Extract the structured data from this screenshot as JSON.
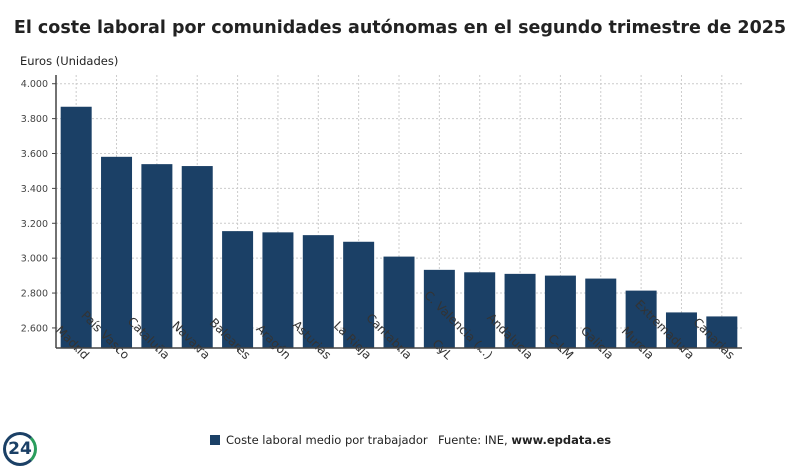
{
  "chart_data": {
    "type": "bar",
    "title": "El coste laboral por comunidades autónomas en el segundo trimestre de 2025",
    "ylabel": "Euros (Unidades)",
    "xlabel": "",
    "categories": [
      "Madrid",
      "País Vasco",
      "Cataluña",
      "Navarra",
      "Baleares",
      "Aragón",
      "Asturias",
      "La Rioja",
      "Cantabria",
      "CyL",
      "C. Valencia (...)",
      "Andalucía",
      "C-LM",
      "Galicia",
      "Murcia",
      "Extremadura",
      "Canarias"
    ],
    "series": [
      {
        "name": "Coste laboral medio por trabajador",
        "values": [
          3868,
          3581,
          3539,
          3528,
          3155,
          3148,
          3132,
          3094,
          3009,
          2933,
          2919,
          2910,
          2900,
          2883,
          2814,
          2689,
          2666
        ]
      }
    ],
    "yticks": [
      "2.600",
      "2.800",
      "3.000",
      "3.200",
      "3.400",
      "3.600",
      "3.800",
      "4.000"
    ],
    "ytick_values": [
      2600,
      2800,
      3000,
      3200,
      3400,
      3600,
      3800,
      4000
    ],
    "ylim": [
      2485,
      4050
    ],
    "grid": true,
    "legend_position": "bottom",
    "bar_color": "#1b4066"
  },
  "source": {
    "prefix": "Fuente: INE, ",
    "site": "www.epdata.es"
  },
  "logo": "24"
}
